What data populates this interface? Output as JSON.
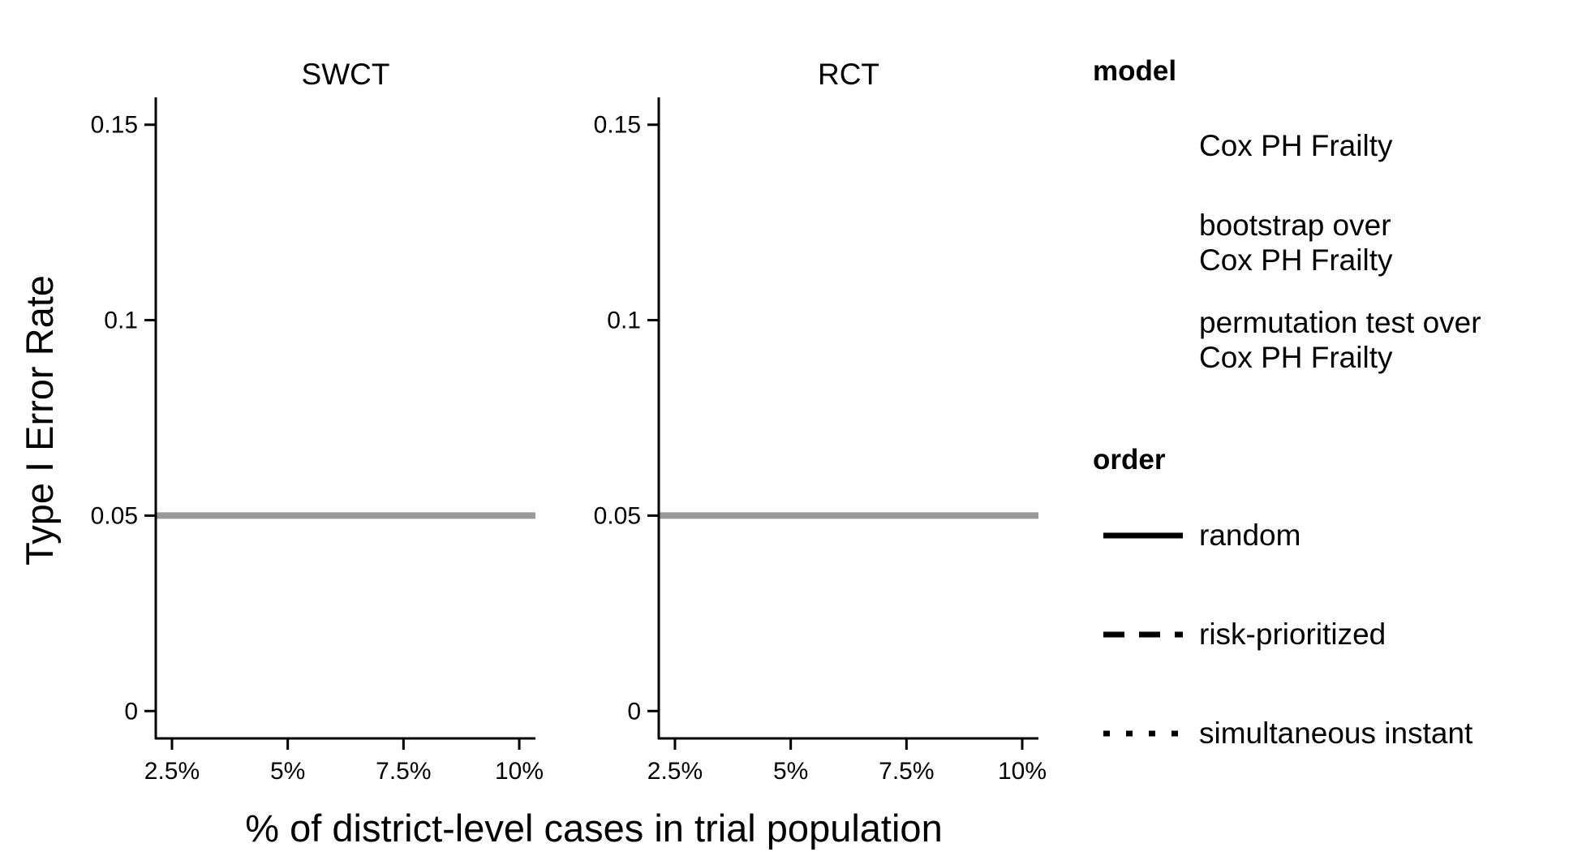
{
  "chart_data": {
    "type": "line",
    "ylabel": "Type I Error Rate",
    "xlabel": "% of district-level cases in trial population",
    "x_ticks": [
      "2.5%",
      "5%",
      "7.5%",
      "10%"
    ],
    "x_values": [
      2.5,
      5,
      7.5,
      10
    ],
    "xlim": [
      2.15,
      10.35
    ],
    "y_ticks": [
      "0",
      "0.05",
      "0.1",
      "0.15"
    ],
    "y_values": [
      0,
      0.05,
      0.1,
      0.15
    ],
    "ylim": [
      -0.007,
      0.157
    ],
    "reference_line": {
      "y": 0.05,
      "color": "#999999"
    },
    "panels": [
      {
        "title": "SWCT",
        "series": []
      },
      {
        "title": "RCT",
        "series": []
      }
    ],
    "legend": {
      "model": {
        "title": "model",
        "items": [
          [
            "Cox PH Frailty"
          ],
          [
            "bootstrap over",
            "Cox PH Frailty"
          ],
          [
            "permutation test over",
            "Cox PH Frailty"
          ]
        ]
      },
      "order": {
        "title": "order",
        "items": [
          {
            "label": "random",
            "linetype": "solid"
          },
          {
            "label": "risk-prioritized",
            "linetype": "dashed"
          },
          {
            "label": "simultaneous instant",
            "linetype": "dotted"
          }
        ]
      },
      "placement": "right"
    }
  }
}
